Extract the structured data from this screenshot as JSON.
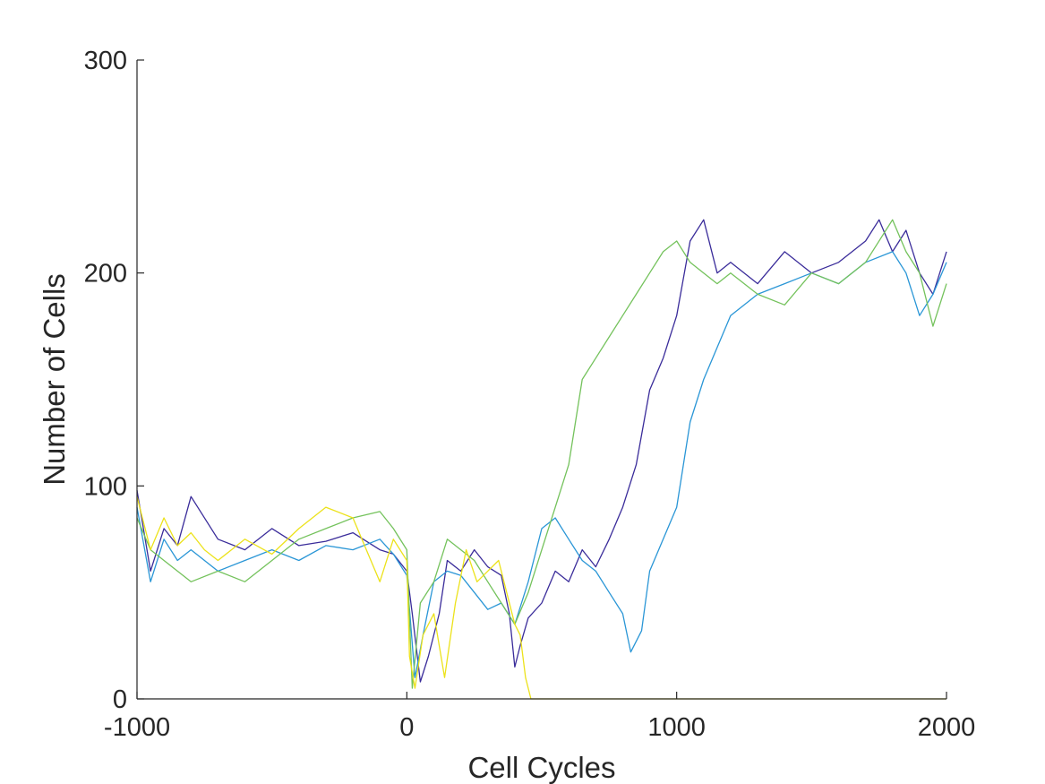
{
  "chart_data": {
    "type": "line",
    "title": "",
    "xlabel": "Cell Cycles",
    "ylabel": "Number of Cells",
    "xlim": [
      -1000,
      2000
    ],
    "ylim": [
      0,
      300
    ],
    "xticks": [
      -1000,
      0,
      1000,
      2000
    ],
    "yticks": [
      0,
      100,
      200,
      300
    ],
    "xtick_labels": [
      "-1000",
      "0",
      "1000",
      "2000"
    ],
    "ytick_labels": [
      "0",
      "100",
      "200",
      "300"
    ],
    "grid": false,
    "legend": "none",
    "series": [
      {
        "color": "#3a2c9a",
        "x": [
          -1000,
          -950,
          -900,
          -850,
          -800,
          -700,
          -600,
          -500,
          -400,
          -300,
          -200,
          -100,
          -50,
          0,
          20,
          50,
          80,
          120,
          150,
          200,
          250,
          300,
          350,
          380,
          400,
          420,
          450,
          500,
          550,
          600,
          650,
          700,
          750,
          800,
          850,
          900,
          950,
          1000,
          1050,
          1100,
          1150,
          1200,
          1300,
          1400,
          1500,
          1600,
          1700,
          1750,
          1800,
          1850,
          1900,
          1950,
          2000
        ],
        "y": [
          98,
          60,
          80,
          72,
          95,
          75,
          70,
          80,
          72,
          74,
          78,
          70,
          68,
          60,
          40,
          8,
          20,
          40,
          65,
          60,
          70,
          62,
          58,
          40,
          15,
          25,
          38,
          45,
          60,
          55,
          70,
          62,
          75,
          90,
          110,
          145,
          160,
          180,
          215,
          225,
          200,
          205,
          195,
          210,
          200,
          205,
          215,
          225,
          210,
          220,
          200,
          190,
          210
        ]
      },
      {
        "color": "#2a96d6",
        "x": [
          -1000,
          -950,
          -900,
          -850,
          -800,
          -700,
          -600,
          -500,
          -400,
          -300,
          -200,
          -100,
          -50,
          0,
          30,
          60,
          100,
          150,
          200,
          250,
          300,
          350,
          400,
          450,
          500,
          550,
          600,
          650,
          700,
          750,
          800,
          830,
          870,
          900,
          950,
          1000,
          1050,
          1100,
          1150,
          1200,
          1300,
          1400,
          1500,
          1600,
          1700,
          1800,
          1850,
          1900,
          1950,
          2000
        ],
        "y": [
          90,
          55,
          75,
          65,
          70,
          60,
          65,
          70,
          65,
          72,
          70,
          75,
          68,
          58,
          10,
          30,
          55,
          60,
          58,
          50,
          42,
          45,
          35,
          55,
          80,
          85,
          75,
          65,
          60,
          50,
          40,
          22,
          32,
          60,
          75,
          90,
          130,
          150,
          165,
          180,
          190,
          195,
          200,
          195,
          205,
          210,
          200,
          180,
          190,
          205
        ]
      },
      {
        "color": "#74c25c",
        "x": [
          -1000,
          -950,
          -900,
          -850,
          -800,
          -700,
          -600,
          -500,
          -400,
          -300,
          -200,
          -100,
          -50,
          0,
          20,
          50,
          100,
          150,
          200,
          250,
          300,
          350,
          400,
          450,
          500,
          550,
          600,
          650,
          700,
          750,
          800,
          850,
          900,
          950,
          1000,
          1050,
          1100,
          1150,
          1200,
          1300,
          1400,
          1500,
          1600,
          1700,
          1800,
          1850,
          1900,
          1950,
          2000
        ],
        "y": [
          85,
          70,
          65,
          60,
          55,
          60,
          55,
          65,
          75,
          80,
          85,
          88,
          80,
          70,
          5,
          45,
          55,
          75,
          70,
          65,
          55,
          45,
          35,
          50,
          70,
          90,
          110,
          150,
          160,
          170,
          180,
          190,
          200,
          210,
          215,
          205,
          200,
          195,
          200,
          190,
          185,
          200,
          195,
          205,
          225,
          210,
          200,
          175,
          195
        ]
      },
      {
        "color": "#ece21a",
        "x": [
          -1000,
          -950,
          -900,
          -850,
          -800,
          -750,
          -700,
          -600,
          -500,
          -400,
          -300,
          -200,
          -100,
          -50,
          0,
          10,
          30,
          60,
          100,
          140,
          180,
          220,
          260,
          300,
          340,
          370,
          400,
          420,
          440,
          460,
          500,
          800,
          1200,
          1600,
          2000
        ],
        "y": [
          95,
          70,
          85,
          72,
          78,
          70,
          65,
          75,
          68,
          80,
          90,
          85,
          55,
          75,
          65,
          20,
          5,
          30,
          40,
          10,
          45,
          70,
          55,
          60,
          65,
          50,
          35,
          30,
          10,
          0,
          0,
          0,
          0,
          0,
          0
        ]
      }
    ]
  }
}
